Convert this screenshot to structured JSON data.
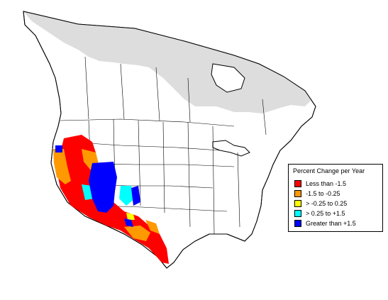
{
  "legend": {
    "title": "Percent Change per Year",
    "items": [
      {
        "label": "Less than -1.5",
        "color": "#ff0000"
      },
      {
        "label": "-1.5 to -0.25",
        "color": "#ff9900"
      },
      {
        "label": "> -0.25 to 0.25",
        "color": "#ffff00"
      },
      {
        "label": "> 0.25 to +1.5",
        "color": "#00ffff"
      },
      {
        "label": "Greater than +1.5",
        "color": "#0000ff"
      }
    ]
  },
  "map_colors": {
    "no_data": "#dddddd",
    "outline": "#000000",
    "background": "#ffffff"
  }
}
